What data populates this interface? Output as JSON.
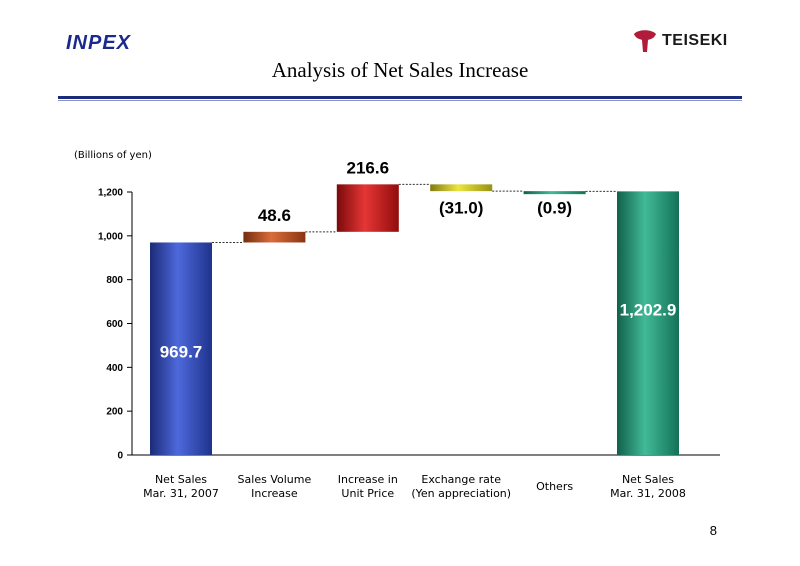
{
  "header": {
    "left_logo": "INPEX",
    "right_logo": "TEISEKI",
    "title": "Analysis of Net Sales Increase",
    "page_number": "8"
  },
  "colors": {
    "brand_navy": "#1c2a7a",
    "teiseki_red": "#b01c3a"
  },
  "chart_data": {
    "type": "bar",
    "subtype": "waterfall",
    "unit_label": "(Billions of yen)",
    "ylim": [
      0,
      1200
    ],
    "yticks": [
      0,
      200,
      400,
      600,
      800,
      1000,
      1200
    ],
    "ytick_labels": [
      "0",
      "200",
      "400",
      "600",
      "800",
      "1,000",
      "1,200"
    ],
    "bars": [
      {
        "label": [
          "Net Sales",
          "Mar. 31, 2007"
        ],
        "kind": "total",
        "start": 0,
        "end": 969.7,
        "value_label": "969.7",
        "color": "#2f4fd6",
        "label_inside": true,
        "label_color": "#ffffff"
      },
      {
        "label": [
          "Sales Volume",
          "Increase"
        ],
        "kind": "delta",
        "start": 969.7,
        "end": 1018.3,
        "value_label": "48.6",
        "color": "#d2521a",
        "label_color": "#000000"
      },
      {
        "label": [
          "Increase in",
          "Unit Price"
        ],
        "kind": "delta",
        "start": 1018.3,
        "end": 1234.9,
        "value_label": "216.6",
        "color": "#e01212",
        "label_color": "#000000"
      },
      {
        "label": [
          "Exchange rate",
          "(Yen appreciation)"
        ],
        "kind": "delta",
        "start": 1234.9,
        "end": 1203.9,
        "value_label": "(31.0)",
        "color": "#e8e020",
        "label_color": "#000000"
      },
      {
        "label": [
          "Others"
        ],
        "kind": "delta",
        "start": 1203.9,
        "end": 1203.0,
        "value_label": "(0.9)",
        "color": "#1fae86",
        "label_color": "#000000"
      },
      {
        "label": [
          "Net Sales",
          "Mar. 31, 2008"
        ],
        "kind": "total",
        "start": 0,
        "end": 1202.9,
        "value_label": "1,202.9",
        "color": "#1fae86",
        "label_inside": true,
        "label_color": "#ffffff"
      }
    ],
    "connectors": true,
    "grid": false,
    "legend": "none"
  }
}
